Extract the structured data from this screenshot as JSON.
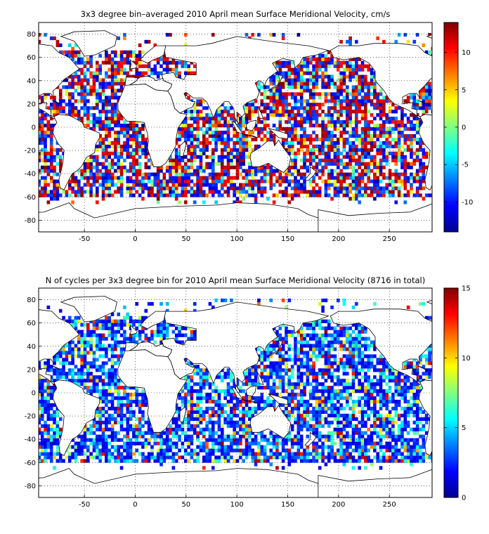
{
  "chart_data": [
    {
      "type": "heatmap",
      "title": "3x3 degree bin–averaged 2010 April mean Surface Meridional Velocity, cm/s",
      "xlim": [
        -95,
        292
      ],
      "ylim": [
        -90,
        90
      ],
      "xticks": [
        -50,
        0,
        50,
        100,
        150,
        200,
        250
      ],
      "yticks": [
        -80,
        -60,
        -40,
        -20,
        0,
        20,
        40,
        60,
        80
      ],
      "grid": "dotted",
      "bin_size_deg": 3,
      "colorbar": {
        "min": -14,
        "max": 14,
        "ticks": [
          10,
          5,
          0,
          -5,
          -10
        ],
        "colormap": "jet"
      }
    },
    {
      "type": "heatmap",
      "title": "N of cycles per 3x3 degree bin for 2010 April mean Surface Meridional Velocity (8716 in total)",
      "xlim": [
        -95,
        292
      ],
      "ylim": [
        -90,
        90
      ],
      "xticks": [
        -50,
        0,
        50,
        100,
        150,
        200,
        250
      ],
      "yticks": [
        -80,
        -60,
        -40,
        -20,
        0,
        20,
        40,
        60,
        80
      ],
      "grid": "dotted",
      "bin_size_deg": 3,
      "total_cycles": 8716,
      "colorbar": {
        "min": 0,
        "max": 15,
        "ticks": [
          15,
          10,
          5,
          0
        ],
        "colormap": "jet"
      }
    }
  ]
}
